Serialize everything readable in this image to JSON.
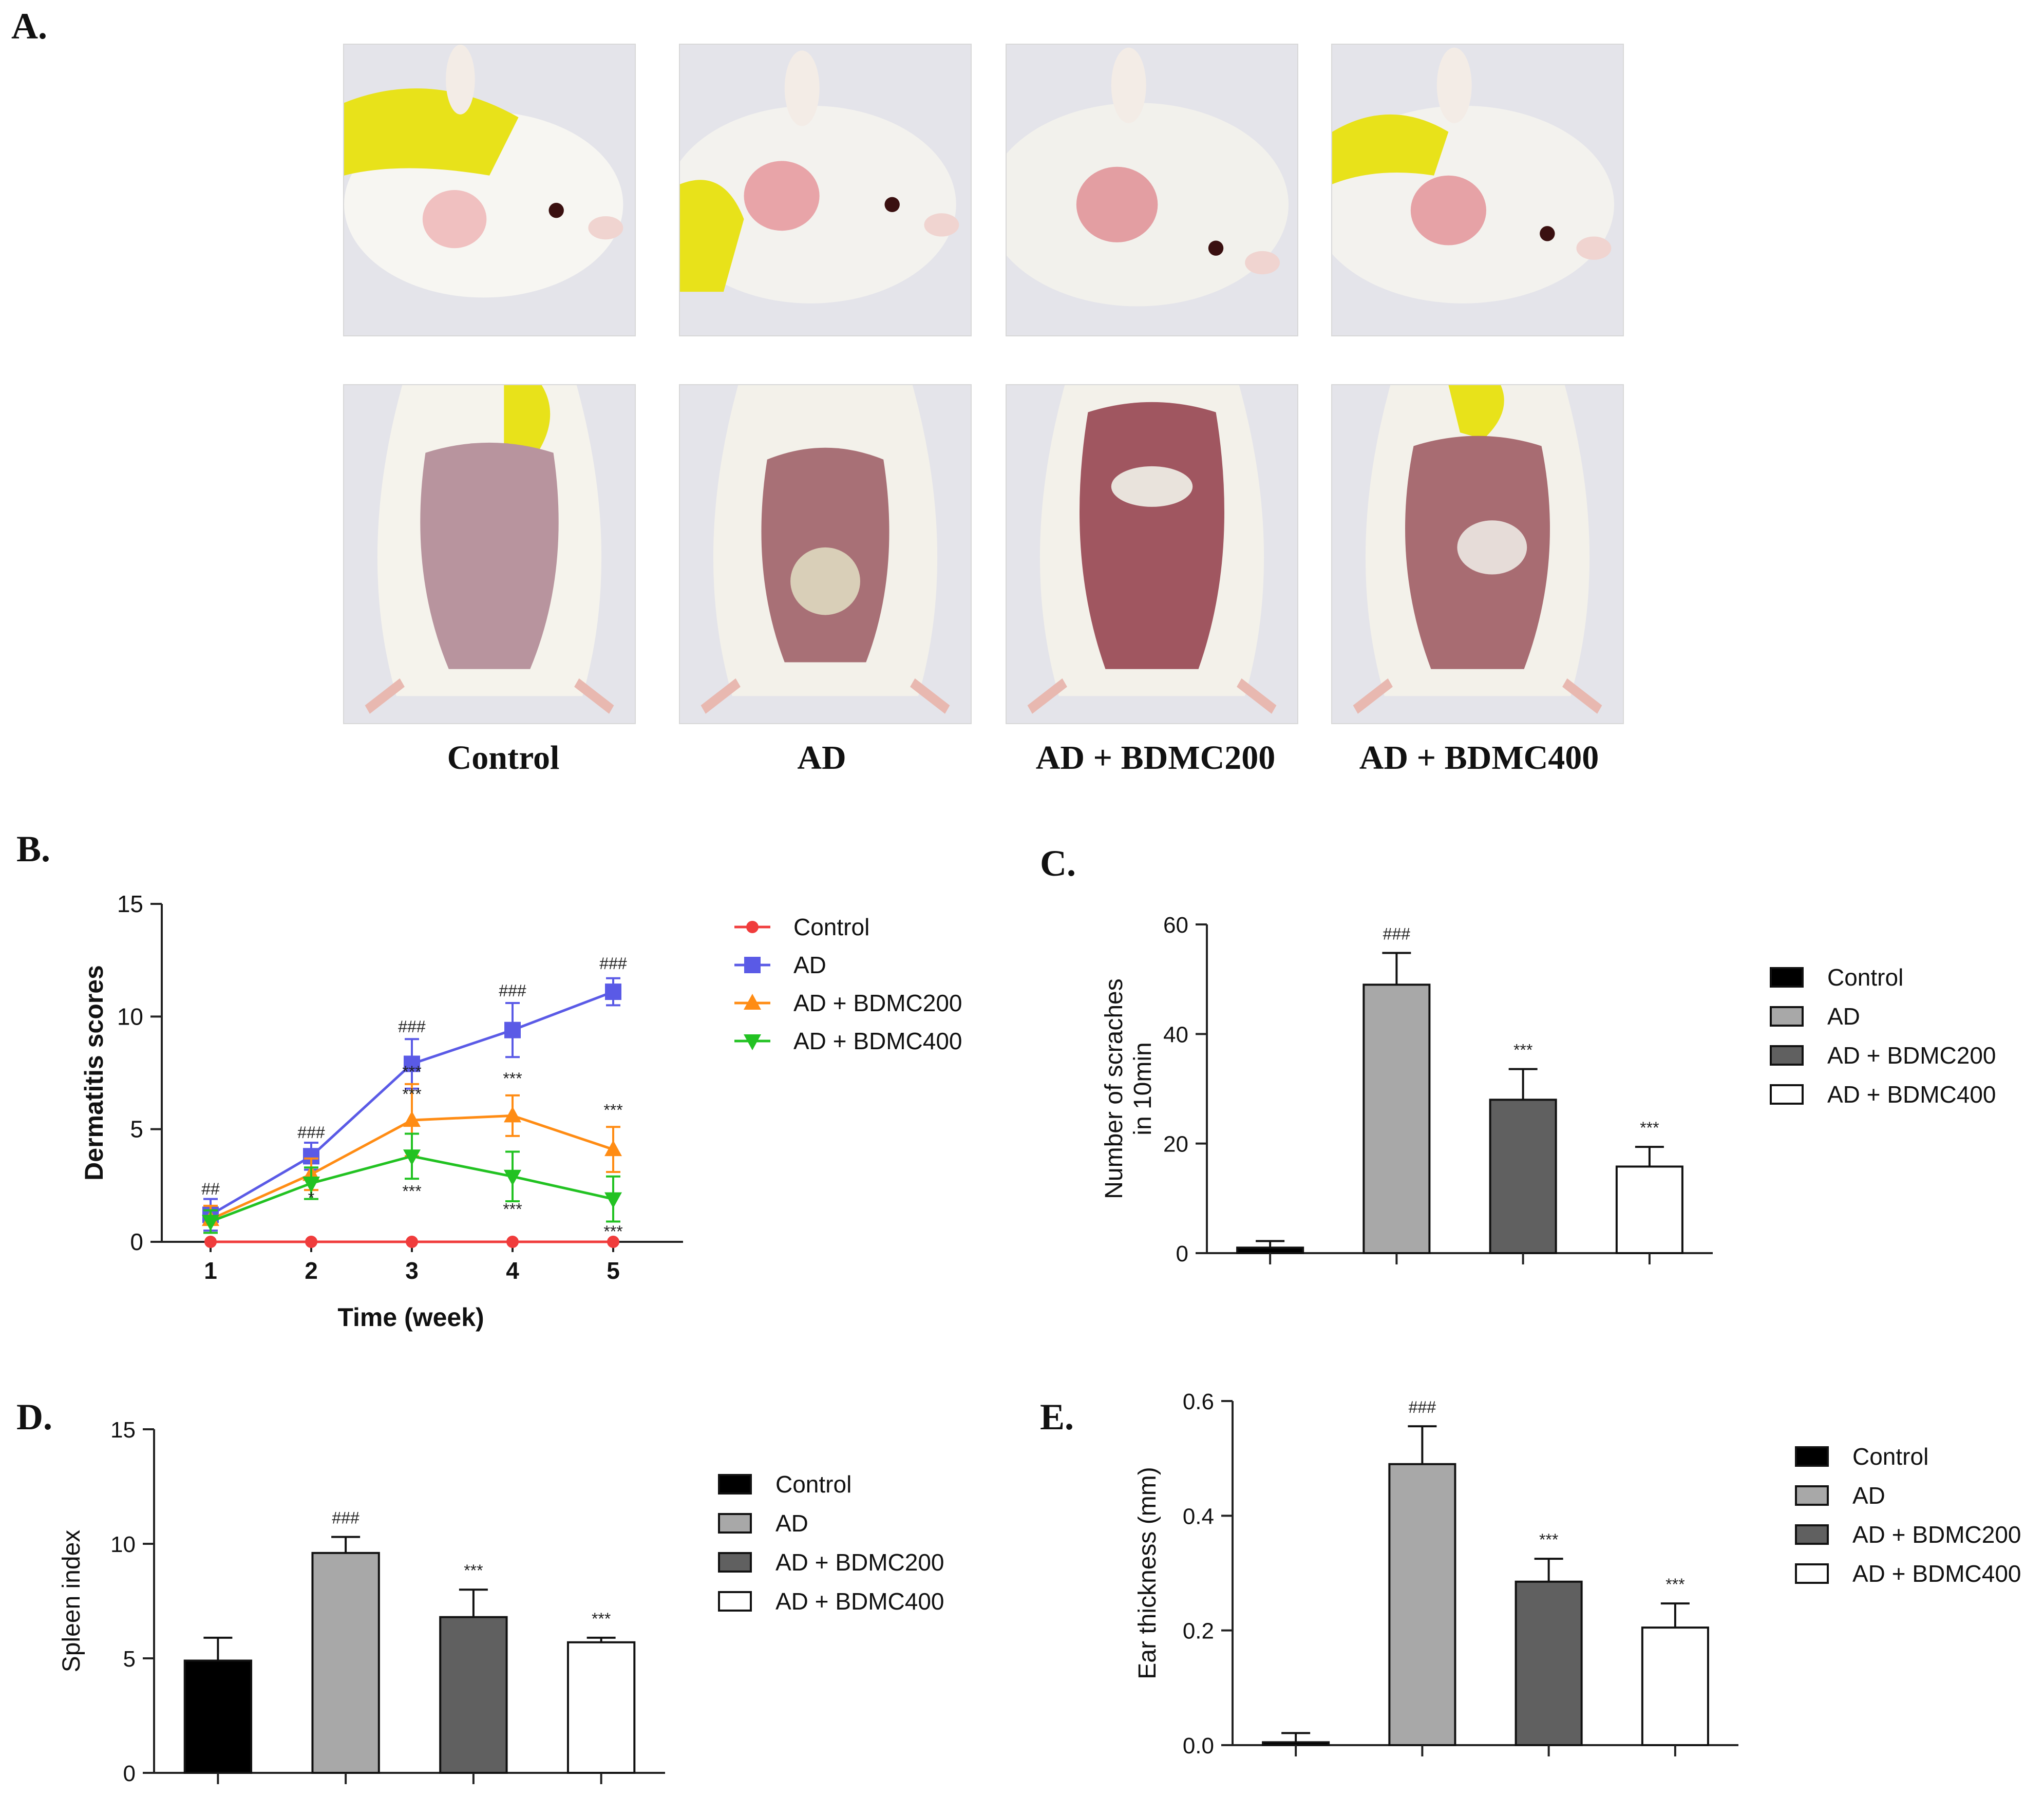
{
  "panels": {
    "a": "A.",
    "b": "B.",
    "c": "C.",
    "d": "D.",
    "e": "E."
  },
  "photo_groups": [
    "Control",
    "AD",
    "AD + BDMC200",
    "AD + BDMC400"
  ],
  "colors": {
    "control_line": "#f03c3c",
    "ad_line": "#5a5ae6",
    "bdmc200_line": "#ff8c14",
    "bdmc400_line": "#22c222",
    "bar_control": "#000000",
    "bar_ad": "#a8a8a8",
    "bar_bdmc200": "#606060",
    "bar_bdmc400": "#ffffff"
  },
  "chart_data": [
    {
      "id": "B",
      "type": "line",
      "xlabel": "Time (week)",
      "ylabel": "Dermatitis scores",
      "x": [
        1,
        2,
        3,
        4,
        5
      ],
      "ylim": [
        0,
        15
      ],
      "yticks": [
        0,
        5,
        10,
        15
      ],
      "series": [
        {
          "name": "Control",
          "values": [
            0,
            0,
            0,
            0,
            0
          ],
          "errors": [
            0,
            0,
            0,
            0,
            0
          ],
          "marker": "circle"
        },
        {
          "name": "AD",
          "values": [
            1.2,
            3.8,
            7.9,
            9.4,
            11.1
          ],
          "errors": [
            0.7,
            0.6,
            1.1,
            1.2,
            0.6
          ],
          "marker": "square"
        },
        {
          "name": "AD + BDMC200",
          "values": [
            1.0,
            3.0,
            5.4,
            5.6,
            4.1
          ],
          "errors": [
            0.6,
            0.7,
            1.6,
            0.9,
            1.0
          ],
          "marker": "triangle-up"
        },
        {
          "name": "AD + BDMC400",
          "values": [
            0.9,
            2.6,
            3.8,
            2.9,
            1.9
          ],
          "errors": [
            0.5,
            0.7,
            1.0,
            1.1,
            1.0
          ],
          "marker": "triangle-down"
        }
      ],
      "annotations": [
        {
          "x": 1,
          "y": 2.1,
          "text": "##"
        },
        {
          "x": 2,
          "y": 4.6,
          "text": "###"
        },
        {
          "x": 3,
          "y": 9.3,
          "text": "###"
        },
        {
          "x": 4,
          "y": 10.9,
          "text": "###"
        },
        {
          "x": 5,
          "y": 12.1,
          "text": "###"
        },
        {
          "x": 2,
          "y": 1.7,
          "text": "*"
        },
        {
          "x": 3,
          "y": 7.3,
          "text": "***"
        },
        {
          "x": 3,
          "y": 6.3,
          "text": "***"
        },
        {
          "x": 3,
          "y": 2.0,
          "text": "***"
        },
        {
          "x": 4,
          "y": 7.0,
          "text": "***"
        },
        {
          "x": 4,
          "y": 1.2,
          "text": "***"
        },
        {
          "x": 5,
          "y": 5.6,
          "text": "***"
        },
        {
          "x": 5,
          "y": 0.2,
          "text": "***"
        }
      ],
      "legend": "right"
    },
    {
      "id": "C",
      "type": "bar",
      "ylabel_lines": [
        "Number of scraches",
        "in 10min"
      ],
      "categories": [
        "Control",
        "AD",
        "AD + BDMC200",
        "AD + BDMC400"
      ],
      "values": [
        1.0,
        49.0,
        28.0,
        15.8
      ],
      "errors": [
        1.2,
        5.8,
        5.6,
        3.6
      ],
      "labels": [
        "",
        "###",
        "***",
        "***"
      ],
      "ylim": [
        0,
        60
      ],
      "yticks": [
        0,
        20,
        40,
        60
      ],
      "legend": "right"
    },
    {
      "id": "D",
      "type": "bar",
      "ylabel_lines": [
        "Spleen index"
      ],
      "categories": [
        "Control",
        "AD",
        "AD + BDMC200",
        "AD + BDMC400"
      ],
      "values": [
        4.9,
        9.6,
        6.8,
        5.7
      ],
      "errors": [
        1.0,
        0.7,
        1.2,
        0.2
      ],
      "labels": [
        "",
        "###",
        "***",
        "***"
      ],
      "ylim": [
        0,
        15
      ],
      "yticks": [
        0,
        5,
        10,
        15
      ],
      "legend": "right"
    },
    {
      "id": "E",
      "type": "bar",
      "ylabel_lines": [
        "Ear thickness (mm)"
      ],
      "categories": [
        "Control",
        "AD",
        "AD + BDMC200",
        "AD + BDMC400"
      ],
      "values": [
        0.005,
        0.49,
        0.285,
        0.205
      ],
      "errors": [
        0.016,
        0.066,
        0.04,
        0.042
      ],
      "labels": [
        "",
        "###",
        "***",
        "***"
      ],
      "ylim": [
        0,
        0.6
      ],
      "yticks": [
        "0.0",
        "0.2",
        "0.4",
        "0.6"
      ],
      "legend": "right"
    }
  ]
}
